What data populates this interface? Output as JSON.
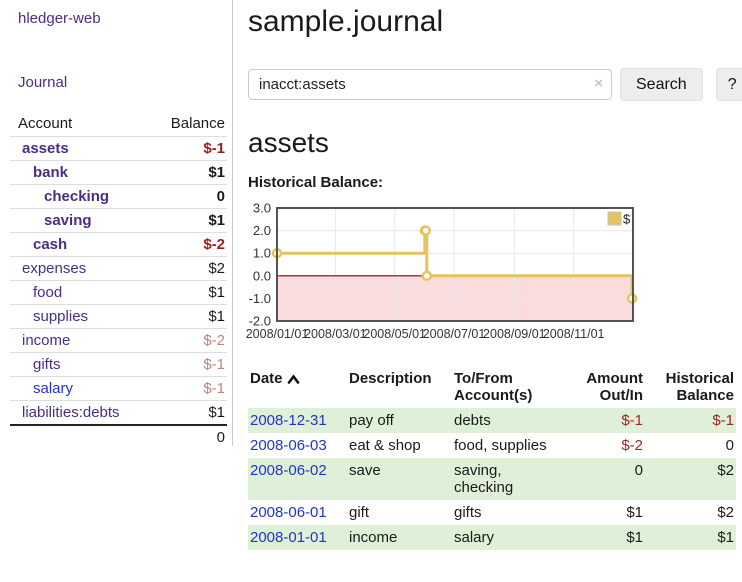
{
  "colors": {
    "brand_purple": "#4b2e83",
    "link_blue": "#2233cc",
    "negative_strong": "#9c1f1f",
    "negative_soft": "#bf8484",
    "negative_table": "#a02525",
    "row_stripe_green": "#dff0d8",
    "chart_line_gold": "#e6c35c",
    "chart_negative_fill": "#fadcdc",
    "chart_zero_line": "#8b0000"
  },
  "sidebar": {
    "brand": "hledger-web",
    "nav_journal": "Journal",
    "accounts_table": {
      "col_account": "Account",
      "col_balance": "Balance",
      "rows": [
        {
          "account": "assets",
          "balance": "$-1",
          "depth": 0,
          "bold": true,
          "balance_class": "neg-strong"
        },
        {
          "account": "bank",
          "balance": "$1",
          "depth": 1,
          "bold": true,
          "balance_class": ""
        },
        {
          "account": "checking",
          "balance": "0",
          "depth": 2,
          "bold": true,
          "balance_class": ""
        },
        {
          "account": "saving",
          "balance": "$1",
          "depth": 2,
          "bold": true,
          "balance_class": ""
        },
        {
          "account": "cash",
          "balance": "$-2",
          "depth": 1,
          "bold": true,
          "balance_class": "neg-strong"
        },
        {
          "account": "expenses",
          "balance": "$2",
          "depth": 0,
          "bold": false,
          "balance_class": ""
        },
        {
          "account": "food",
          "balance": "$1",
          "depth": 1,
          "bold": false,
          "balance_class": ""
        },
        {
          "account": "supplies",
          "balance": "$1",
          "depth": 1,
          "bold": false,
          "balance_class": ""
        },
        {
          "account": "income",
          "balance": "$-2",
          "depth": 0,
          "bold": false,
          "balance_class": "neg-soft"
        },
        {
          "account": "gifts",
          "balance": "$-1",
          "depth": 1,
          "bold": false,
          "balance_class": "neg-soft"
        },
        {
          "account": "salary",
          "balance": "$-1",
          "depth": 1,
          "bold": false,
          "balance_class": "neg-soft",
          "link_blue": true
        },
        {
          "account": "liabilities:debts",
          "balance": "$1",
          "depth": 0,
          "bold": false,
          "balance_class": ""
        }
      ],
      "total": "0"
    }
  },
  "main": {
    "title": "sample.journal",
    "search": {
      "value": "inacct:assets",
      "clear_label": "×",
      "button_label": "Search",
      "help_label": "?"
    },
    "account_heading": "assets",
    "chart_title": "Historical Balance:",
    "register": {
      "headers": {
        "date": "Date",
        "sort_icon": "chevron-up",
        "description": "Description",
        "accounts": "To/From Account(s)",
        "amount": "Amount Out/In",
        "balance": "Historical Balance"
      },
      "rows": [
        {
          "date": "2008-12-31",
          "description": "pay off",
          "accounts": "debts",
          "amount": "$-1",
          "amount_neg": true,
          "balance": "$-1",
          "balance_neg": true
        },
        {
          "date": "2008-06-03",
          "description": "eat & shop",
          "accounts": "food, supplies",
          "amount": "$-2",
          "amount_neg": true,
          "balance": "0",
          "balance_neg": false
        },
        {
          "date": "2008-06-02",
          "description": "save",
          "accounts": "saving, checking",
          "amount": "0",
          "amount_neg": false,
          "balance": "$2",
          "balance_neg": false
        },
        {
          "date": "2008-06-01",
          "description": "gift",
          "accounts": "gifts",
          "amount": "$1",
          "amount_neg": false,
          "balance": "$2",
          "balance_neg": false
        },
        {
          "date": "2008-01-01",
          "description": "income",
          "accounts": "salary",
          "amount": "$1",
          "amount_neg": false,
          "balance": "$1",
          "balance_neg": false
        }
      ]
    }
  },
  "chart_data": {
    "type": "line",
    "step": true,
    "title": "Historical Balance:",
    "series": [
      {
        "name": "$",
        "points": [
          [
            "2008-01-01",
            1
          ],
          [
            "2008-06-01",
            2
          ],
          [
            "2008-06-02",
            2
          ],
          [
            "2008-06-03",
            0
          ],
          [
            "2008-12-31",
            -1
          ]
        ]
      }
    ],
    "xlim": [
      "2008-01-01",
      "2009-01-01"
    ],
    "ylim": [
      -2,
      3
    ],
    "x_ticks": [
      "2008/01/01",
      "2008/03/01",
      "2008/05/01",
      "2008/07/01",
      "2008/09/01",
      "2008/11/01"
    ],
    "y_ticks": [
      "3.0",
      "2.0",
      "1.0",
      "0.0",
      "-1.0",
      "-2.0"
    ],
    "grid": true,
    "legend": {
      "label": "$",
      "position": "top-right"
    },
    "negative_region_shaded": true
  }
}
